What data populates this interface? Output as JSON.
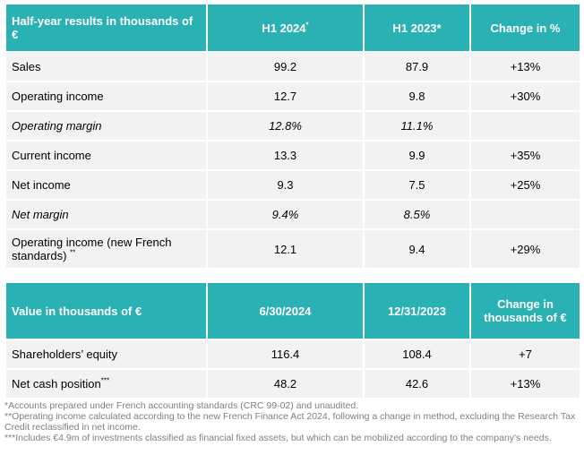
{
  "half_year_table": {
    "headers": {
      "label": "Half-year results in thousands of €",
      "h1_2024": "H1 2024",
      "h1_2024_mark": "*",
      "h1_2023": "H1 2023*",
      "change": "Change in %"
    },
    "rows": [
      {
        "label": "Sales",
        "mark": "",
        "h1_2024": "99.2",
        "h1_2023": "87.9",
        "change": "+13%",
        "italic": false
      },
      {
        "label": "Operating income",
        "mark": "",
        "h1_2024": "12.7",
        "h1_2023": "9.8",
        "change": "+30%",
        "italic": false
      },
      {
        "label": "Operating margin",
        "mark": "",
        "h1_2024": "12.8%",
        "h1_2023": "11.1%",
        "change": "",
        "italic": true
      },
      {
        "label": "Current income",
        "mark": "",
        "h1_2024": "13.3",
        "h1_2023": "9.9",
        "change": "+35%",
        "italic": false
      },
      {
        "label": "Net income",
        "mark": "",
        "h1_2024": "9.3",
        "h1_2023": "7.5",
        "change": "+25%",
        "italic": false
      },
      {
        "label": "Net margin",
        "mark": "",
        "h1_2024": "9.4%",
        "h1_2023": "8.5%",
        "change": "",
        "italic": true
      },
      {
        "label": "Operating income (new French standards) ",
        "mark": "**",
        "h1_2024": "12.1",
        "h1_2023": "9.4",
        "change": "+29%",
        "italic": false
      }
    ]
  },
  "value_table": {
    "headers": {
      "label": "Value in thousands of €",
      "date_2024": "6/30/2024",
      "date_2023": "12/31/2023",
      "change": "Change in thousands of €"
    },
    "rows": [
      {
        "label": "Shareholders’ equity",
        "mark": "",
        "date_2024": "116.4",
        "date_2023": "108.4",
        "change": "+7"
      },
      {
        "label": "Net cash position",
        "mark": "***",
        "date_2024": "48.2",
        "date_2023": "42.6",
        "change": "+13%"
      }
    ]
  },
  "footnotes": [
    "*Accounts prepared under French accounting standards (CRC 99-02) and unaudited.",
    "**Operating income calculated according to the new French Finance Act 2024, following a change in method, excluding the Research Tax Credit reclassified in net income.",
    "***Includes €4.9m of investments classified as financial fixed assets, but which can be mobilized according to the company's needs."
  ],
  "colors": {
    "header_bg": "#2ab1b3",
    "header_text": "#ffffff",
    "cell_bg": "#f2f2f2",
    "footnote_text": "#7f7f7f"
  }
}
